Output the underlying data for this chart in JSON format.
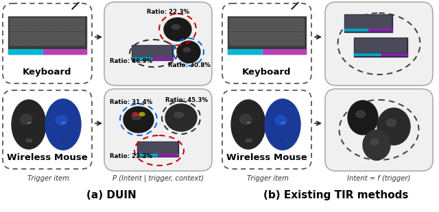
{
  "title_a": "(a) DUIN",
  "title_b": "(b) Existing TIR methods",
  "label_trigger_a": "Trigger item",
  "label_prob_a": "P (Intent | trigger, context)",
  "label_trigger_b": "Trigger item",
  "label_intent_b": "Intent = f (trigger)",
  "label_keyboard": "Keyboard",
  "label_mouse": "Wireless Mouse",
  "ratio_top_red": "Ratio: 22.3%",
  "ratio_top_black": "Ratio: 46.9%",
  "ratio_top_blue": "Ratio: 30.8%",
  "ratio_bot_blue": "Ratio: 31.4%",
  "ratio_bot_black": "Ratio: 45.3%",
  "ratio_bot_red": "Ratio: 23.2%",
  "bg_color": "#ffffff",
  "red_circle_color": "#cc0000",
  "blue_circle_color": "#1166dd",
  "black_circle_color": "#333333",
  "dashed_box_color": "#555555",
  "solid_box_color": "#666666",
  "solid_box_fill": "#f0f0f0",
  "arrow_color": "#222222"
}
